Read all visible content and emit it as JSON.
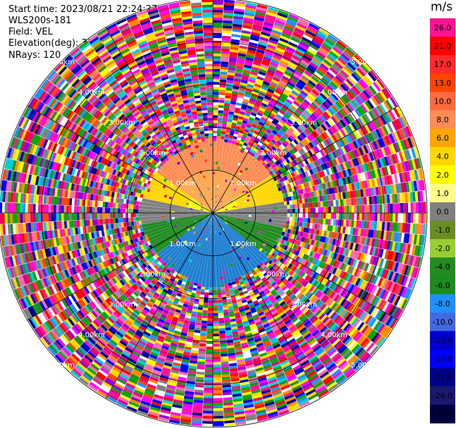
{
  "header": {
    "start_time": "Start time: 2023/08/21 22:24:27",
    "instrument": "WLS200s-181",
    "field": "Field: VEL",
    "elevation": "Elevation(deg): 35.30",
    "nrays": "NRays: 120"
  },
  "colorbar": {
    "title": "m/s",
    "ticks": [
      "26.0",
      "21.0",
      "17.0",
      "13.0",
      "10.0",
      "8.0",
      "6.0",
      "4.0",
      "2.0",
      "1.0",
      "0.0",
      "-1.0",
      "-2.0",
      "-4.0",
      "-6.0",
      "-8.0",
      "-10.0",
      "-13.0",
      "-17.0",
      "-21.0",
      "-26.0",
      "-30.0"
    ],
    "colors": [
      "#ff1493",
      "#ff0000",
      "#ff2a2a",
      "#ff4500",
      "#ff6a40",
      "#ff8c55",
      "#ffa500",
      "#ffd700",
      "#ffff00",
      "#ffff88",
      "#808080",
      "#6b8e23",
      "#9acd32",
      "#228b22",
      "#1e8b1e",
      "#1e90ff",
      "#4169e1",
      "#0000cd",
      "#0000ff",
      "#00008b",
      "#191970",
      "#000040"
    ]
  },
  "chart_data": {
    "type": "heatmap",
    "subtype": "polar-ppi",
    "field": "VEL",
    "units": "m/s",
    "nrays": 120,
    "range_rings_km": [
      1.0,
      2.0,
      3.0,
      4.0,
      5.0
    ],
    "ring_labels": [
      "1.00km",
      "2.00km",
      "3.00km",
      "4.00km",
      "5.00km"
    ],
    "vmin": -30.0,
    "vmax": 26.0,
    "valid_data_range_km": 1.75,
    "pattern": "coherent velocity field near center (positive north, negative south), noise beyond"
  }
}
